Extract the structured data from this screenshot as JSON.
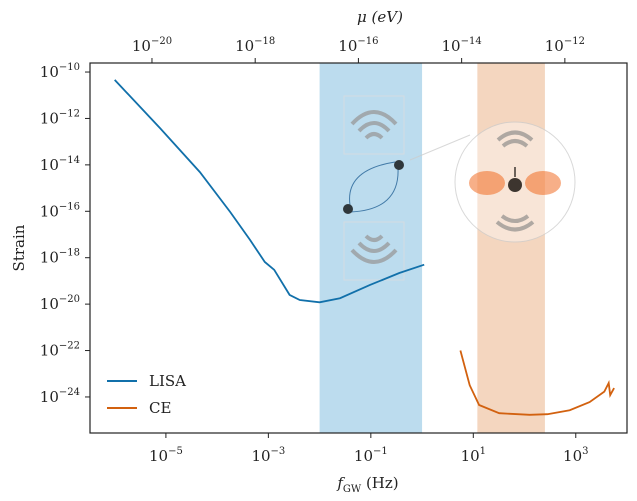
{
  "chart_data": {
    "type": "line",
    "xlabel": "fGW (Hz)",
    "ylabel": "Strain",
    "x2label": "μ (eV)",
    "xscale": "log",
    "yscale": "log",
    "xlim": [
      3.3e-07,
      10000.0
    ],
    "ylim": [
      2.8e-26,
      2.45e-10
    ],
    "x2lim": [
      6.3e-22,
      1.6e-11
    ],
    "xticks": [
      {
        "value": 1e-05,
        "label": "10−5"
      },
      {
        "value": 0.001,
        "label": "10−3"
      },
      {
        "value": 0.1,
        "label": "10−1"
      },
      {
        "value": 10,
        "label": "101"
      },
      {
        "value": 1000,
        "label": "103"
      }
    ],
    "x2ticks": [
      {
        "value": 1e-20,
        "label": "10−20"
      },
      {
        "value": 1e-18,
        "label": "10−18"
      },
      {
        "value": 1e-16,
        "label": "10−16"
      },
      {
        "value": 1e-14,
        "label": "10−14"
      },
      {
        "value": 1e-12,
        "label": "10−12"
      }
    ],
    "yticks": [
      {
        "value": 1e-10,
        "label": "10−10"
      },
      {
        "value": 1e-12,
        "label": "10−12"
      },
      {
        "value": 1e-14,
        "label": "10−14"
      },
      {
        "value": 1e-16,
        "label": "10−16"
      },
      {
        "value": 1e-18,
        "label": "10−18"
      },
      {
        "value": 1e-20,
        "label": "10−20"
      },
      {
        "value": 1e-22,
        "label": "10−22"
      },
      {
        "value": 1e-24,
        "label": "10−24"
      }
    ],
    "bands": [
      {
        "xrange": [
          0.01,
          1
        ],
        "color": "#bcdcee"
      },
      {
        "xrange": [
          12,
          250
        ],
        "color": "#f4d6bf"
      }
    ],
    "legend": "lower left",
    "series": [
      {
        "name": "LISA",
        "color": "#1170aa",
        "x": [
          1e-06,
          7.6e-06,
          4.6e-05,
          0.00018,
          0.00044,
          0.00085,
          0.0013,
          0.0026,
          0.0041,
          0.01,
          0.025,
          0.095,
          0.36,
          1.1
        ],
        "values": [
          4.6e-11,
          3.9e-13,
          4.9e-15,
          9.3e-17,
          5.8e-18,
          6.5e-19,
          3e-19,
          2.5e-20,
          1.5e-20,
          1.2e-20,
          1.8e-20,
          6.6e-20,
          2.2e-19,
          5e-19
        ]
      },
      {
        "name": "CE",
        "color": "#d2610f",
        "x": [
          5.6,
          8.5,
          13,
          32,
          126,
          280,
          760,
          1860,
          3600,
          4400,
          4700,
          5600
        ],
        "values": [
          1e-22,
          3.2e-24,
          4.5e-25,
          2e-25,
          1.7e-25,
          1.8e-25,
          2.7e-25,
          6e-25,
          1.7e-24,
          4e-24,
          1.2e-24,
          2.4e-24
        ]
      }
    ]
  }
}
